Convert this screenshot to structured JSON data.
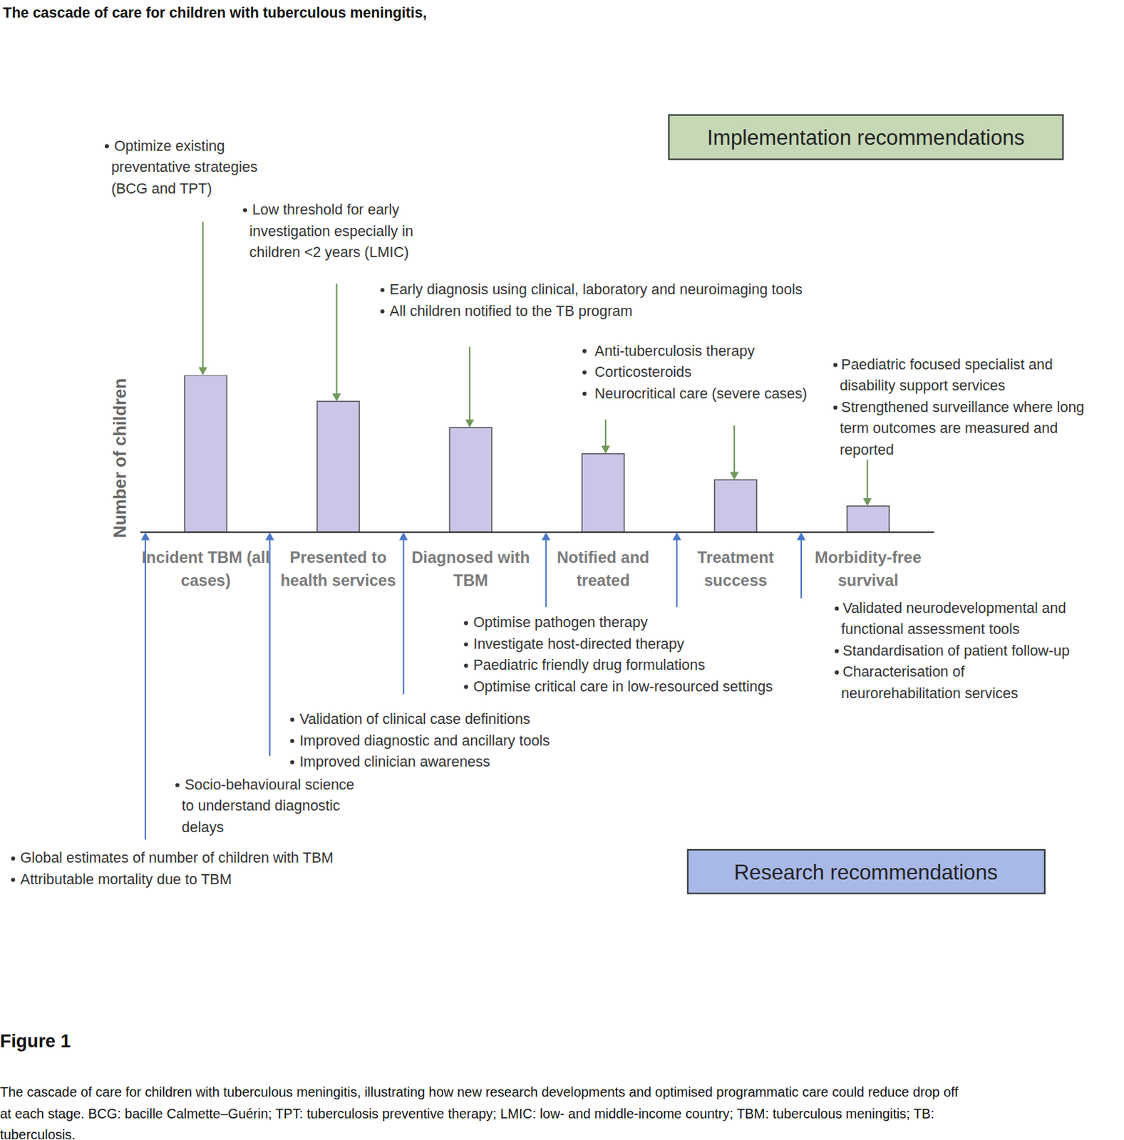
{
  "chart_data": {
    "type": "bar",
    "title": "The cascade of care for children with tuberculous meningitis,",
    "y_label": "Number of children",
    "categories": [
      "Incident TBM (all cases)",
      "Presented to health services",
      "Diagnosed with TBM",
      "Notified and treated",
      "Treatment success",
      "Morbidity-free survival"
    ],
    "values": [
      6,
      5,
      4,
      3,
      2,
      1
    ],
    "color": "#cbc5e8",
    "ylim": [
      0,
      6
    ],
    "grid": false,
    "tick_labels": false,
    "data_labels": false
  },
  "implementation": {
    "title": "Implementation recommendations",
    "groups": [
      {
        "items": [
          [
            "Optimize existing",
            "preventative strategies",
            "(BCG and TPT)"
          ]
        ]
      },
      {
        "items": [
          [
            "Low threshold for early",
            "investigation especially in",
            "children <2 years (LMIC)"
          ]
        ]
      },
      {
        "items": [
          [
            "Early diagnosis using clinical, laboratory and neuroimaging tools"
          ],
          [
            "All children notified to the TB program"
          ]
        ]
      },
      {
        "items": [
          [
            "Anti-tuberculosis therapy"
          ],
          [
            "Corticosteroids"
          ],
          [
            "Neurocritical care (severe cases)"
          ]
        ]
      },
      {
        "items": []
      },
      {
        "items": [
          [
            "Paediatric focused specialist and",
            "disability support services"
          ],
          [
            "Strengthened surveillance where long",
            "term outcomes are measured and",
            "reported"
          ]
        ]
      }
    ]
  },
  "research": {
    "title": "Research recommendations",
    "groups": [
      {
        "items": [
          [
            "Global estimates of number of children with TBM"
          ],
          [
            "Attributable mortality due to TBM"
          ]
        ]
      },
      {
        "items": [
          [
            "Socio-behavioural science",
            "to understand diagnostic",
            "delays"
          ]
        ]
      },
      {
        "items": [
          [
            "Validation of clinical case definitions"
          ],
          [
            "Improved diagnostic and ancillary tools"
          ],
          [
            "Improved clinician awareness"
          ]
        ]
      },
      {
        "items": [
          [
            "Optimise pathogen therapy"
          ],
          [
            "Investigate host-directed therapy"
          ],
          [
            "Paediatric friendly drug formulations"
          ],
          [
            "Optimise critical care in low-resourced settings"
          ]
        ]
      },
      {
        "items": []
      },
      {
        "items": [
          [
            "Validated neurodevelopmental and",
            "functional assessment tools"
          ],
          [
            "Standardisation of patient follow-up"
          ],
          [
            "Characterisation of",
            "neurorehabilitation services"
          ]
        ]
      }
    ]
  },
  "figure": {
    "label": "Figure 1",
    "caption": [
      "The cascade of care for children with tuberculous meningitis, illustrating how new research developments and optimised programmatic care could reduce drop off",
      "at each stage. BCG: bacille Calmette–Guérin; TPT: tuberculosis preventive therapy; LMIC: low- and middle-income country; TBM: tuberculous meningitis; TB:",
      "tuberculosis."
    ]
  }
}
